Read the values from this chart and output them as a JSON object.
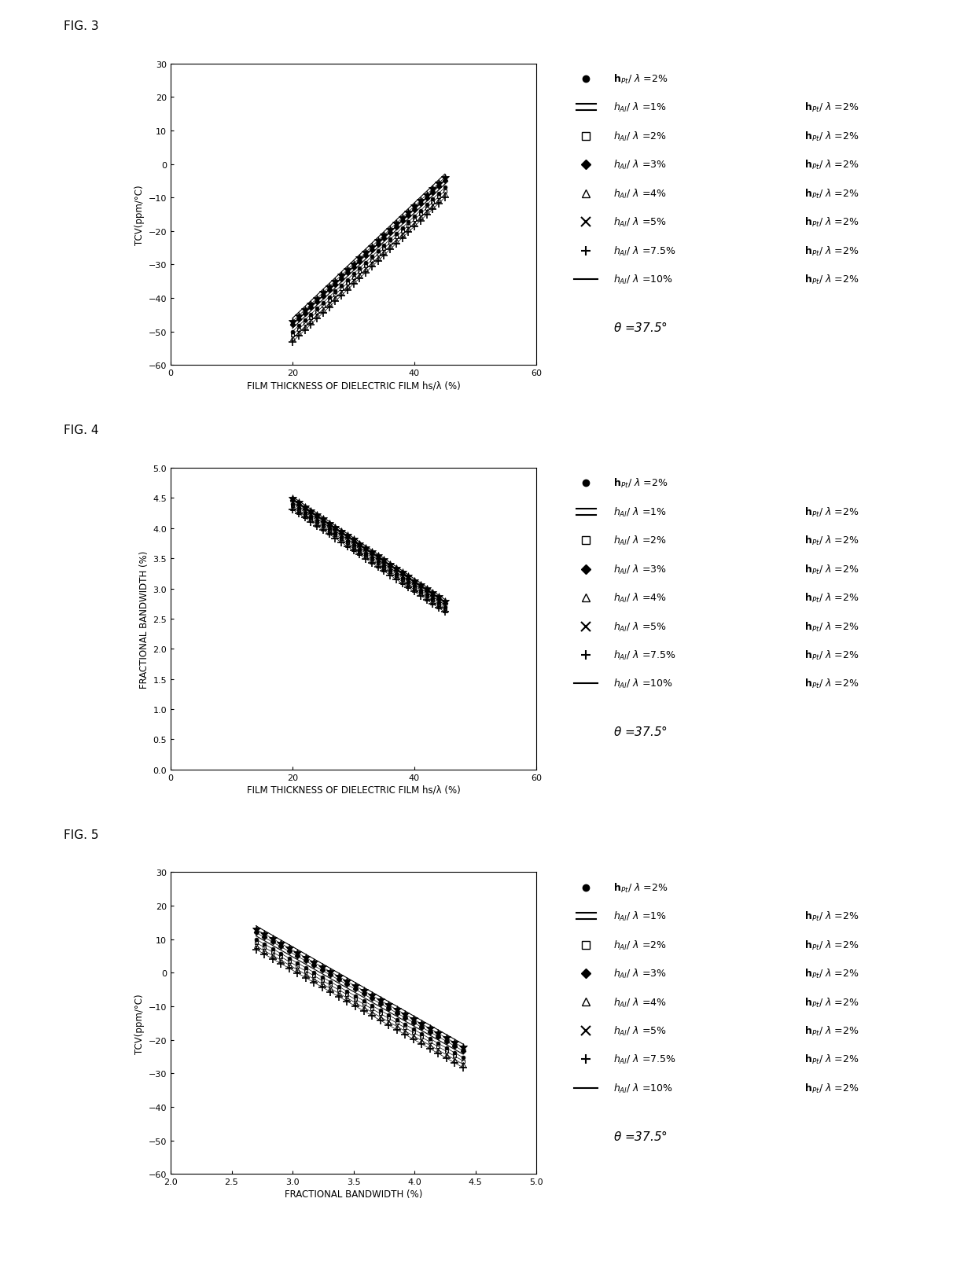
{
  "fig3": {
    "xlabel": "FILM THICKNESS OF DIELECTRIC FILM hs/λ (%)",
    "ylabel": "TCV(ppm/°C)",
    "xlim": [
      0,
      60
    ],
    "ylim": [
      -60,
      30
    ],
    "xticks": [
      0,
      20,
      40,
      60
    ],
    "yticks": [
      -60,
      -50,
      -40,
      -30,
      -20,
      -10,
      0,
      10,
      20,
      30
    ],
    "fig_label": "FIG. 3"
  },
  "fig4": {
    "xlabel": "FILM THICKNESS OF DIELECTRIC FILM hs/λ (%)",
    "ylabel": "FRACTIONAL BANDWIDTH (%)",
    "xlim": [
      0,
      60
    ],
    "ylim": [
      0,
      5
    ],
    "xticks": [
      0,
      20,
      40,
      60
    ],
    "yticks": [
      0,
      0.5,
      1.0,
      1.5,
      2.0,
      2.5,
      3.0,
      3.5,
      4.0,
      4.5,
      5.0
    ],
    "fig_label": "FIG. 4"
  },
  "fig5": {
    "xlabel": "FRACTIONAL BANDWIDTH (%)",
    "ylabel": "TCV(ppm/°C)",
    "xlim": [
      2,
      5
    ],
    "ylim": [
      -60,
      30
    ],
    "xticks": [
      2,
      2.5,
      3.0,
      3.5,
      4.0,
      4.5,
      5.0
    ],
    "yticks": [
      -60,
      -50,
      -40,
      -30,
      -20,
      -10,
      0,
      10,
      20,
      30
    ],
    "fig_label": "FIG. 5"
  },
  "theta": "θ =37.5°",
  "legend_markers": [
    "o",
    "=",
    "s",
    "D",
    "^",
    "*",
    "+",
    "-"
  ],
  "legend_label1": [
    "hₚₜ/ λ =2%",
    "hₐℓ/ λ =1%",
    "hₐℓ/ λ =2%",
    "hₐℓ/ λ =3%",
    "hₐℓ/ λ =4%",
    "hₐℓ/ λ =5%",
    "hₐℓ/ λ =7.5%",
    "hₐℓ/ λ =10%"
  ],
  "legend_label2": [
    "",
    "hₚₜ/ λ =2%",
    "hₚₜ/ λ =2%",
    "hₚₜ/ λ =2%",
    "hₚₜ/ λ =2%",
    "hₚₜ/ λ =2%",
    "hₚₜ/ λ =2%",
    "hₚₜ/ λ =2%"
  ]
}
